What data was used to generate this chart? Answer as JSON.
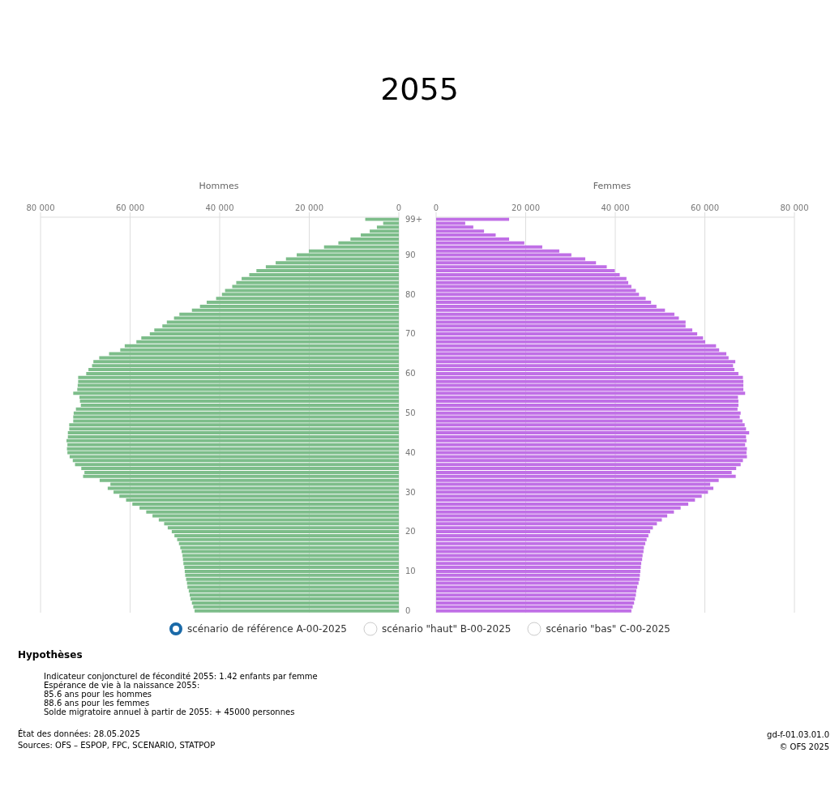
{
  "chart_data": [
    {
      "type": "bar",
      "title": "2055",
      "xlabel": "Hommes",
      "orientation": "horizontal",
      "categories": [
        "99+",
        null,
        null,
        null,
        null,
        null,
        null,
        null,
        null,
        "90",
        null,
        null,
        null,
        null,
        null,
        null,
        null,
        null,
        null,
        "80",
        null,
        null,
        null,
        null,
        null,
        null,
        null,
        null,
        null,
        "70",
        null,
        null,
        null,
        null,
        null,
        null,
        null,
        null,
        null,
        "60",
        null,
        null,
        null,
        null,
        null,
        null,
        null,
        null,
        null,
        "50",
        null,
        null,
        null,
        null,
        null,
        null,
        null,
        null,
        null,
        "40",
        null,
        null,
        null,
        null,
        null,
        null,
        null,
        null,
        null,
        "30",
        null,
        null,
        null,
        null,
        null,
        null,
        null,
        null,
        null,
        "20",
        null,
        null,
        null,
        null,
        null,
        null,
        null,
        null,
        null,
        "10",
        null,
        null,
        null,
        null,
        null,
        null,
        null,
        null,
        null,
        "0"
      ],
      "series": [
        {
          "color": "#7dbd8a",
          "values": [
            7500,
            3500,
            4900,
            6500,
            8500,
            10800,
            13500,
            16700,
            20100,
            22800,
            25200,
            27500,
            29700,
            31800,
            33400,
            35100,
            36300,
            37200,
            38800,
            39500,
            40800,
            42900,
            44400,
            46200,
            49000,
            50200,
            51800,
            52800,
            54600,
            55600,
            57500,
            58600,
            61200,
            62200,
            64700,
            66900,
            68200,
            68500,
            69300,
            69800,
            71600,
            71600,
            71700,
            71800,
            72700,
            71300,
            71200,
            71000,
            72100,
            72600,
            72700,
            72700,
            73600,
            73600,
            73900,
            73900,
            74200,
            74000,
            74100,
            74000,
            73500,
            72800,
            72300,
            70900,
            70200,
            70500,
            66800,
            64400,
            65000,
            63700,
            62400,
            60900,
            59500,
            57900,
            56400,
            55000,
            53600,
            52400,
            51600,
            50700,
            50100,
            49500,
            49100,
            48800,
            48500,
            48300,
            48200,
            48100,
            47900,
            47800,
            47700,
            47500,
            47300,
            47200,
            46900,
            46700,
            46500,
            46200,
            45900,
            45600
          ]
        }
      ],
      "xlim": [
        80000,
        0
      ],
      "xticks": [
        {
          "value": 80000,
          "label": "80 000"
        },
        {
          "value": 60000,
          "label": "60 000"
        },
        {
          "value": 40000,
          "label": "40 000"
        },
        {
          "value": 20000,
          "label": "20 000"
        },
        0
      ],
      "grid": "x",
      "annotations": [
        "Hypothèses",
        "Indicateur conjoncturel de fécondité 2055: 1.42 enfants par femme",
        "Espérance de vie à la naissance 2055:",
        "85.6 ans pour les hommes",
        "88.6 ans pour les femmes",
        "Solde migratoire annuel à partir de 2055: + 45000 personnes",
        "État des données: 28.05.2025",
        "Sources: OFS – ESPOP, FPC, SCENARIO, STATPOP",
        "gd-f-01.03.01.0",
        "© OFS 2025"
      ]
    },
    {
      "type": "bar",
      "xlabel": "Femmes",
      "orientation": "horizontal",
      "categories": [
        null,
        null,
        null,
        null,
        null,
        null,
        null,
        null,
        null,
        null,
        null,
        null,
        null,
        null,
        null,
        null,
        null,
        null,
        null,
        null,
        null,
        null,
        null,
        null,
        null,
        null,
        null,
        null,
        null,
        null,
        null,
        null,
        null,
        null,
        null,
        null,
        null,
        null,
        null,
        null,
        null,
        null,
        null,
        null,
        null,
        null,
        null,
        null,
        null,
        null,
        null,
        null,
        null,
        null,
        null,
        null,
        null,
        null,
        null,
        null,
        null,
        null,
        null,
        null,
        null,
        null,
        null,
        null,
        null,
        null,
        null,
        null,
        null,
        null,
        null,
        null,
        null,
        null,
        null,
        null,
        null,
        null,
        null,
        null,
        null,
        null,
        null,
        null,
        null,
        null,
        null,
        null,
        null,
        null,
        null,
        null,
        null,
        null,
        null,
        null
      ],
      "series": [
        {
          "color": "#c06fe6",
          "values": [
            16300,
            6500,
            8300,
            10700,
            13300,
            16300,
            19700,
            23700,
            27500,
            30200,
            33300,
            35700,
            38100,
            39900,
            41000,
            42500,
            42900,
            43600,
            44600,
            45300,
            46800,
            48000,
            49200,
            51100,
            53200,
            54200,
            55700,
            55700,
            57200,
            58300,
            59600,
            60100,
            62500,
            63200,
            64800,
            65300,
            66800,
            66300,
            66600,
            67500,
            68500,
            68600,
            68600,
            68600,
            69000,
            67400,
            67500,
            67500,
            67300,
            68000,
            67800,
            68400,
            68900,
            69200,
            69900,
            69200,
            69300,
            69000,
            69400,
            69300,
            69400,
            68500,
            68000,
            67000,
            66000,
            66900,
            63100,
            61200,
            61900,
            60700,
            59300,
            57800,
            56300,
            54600,
            53100,
            51600,
            50400,
            49300,
            48400,
            47800,
            47400,
            47000,
            46700,
            46400,
            46300,
            46100,
            46000,
            45800,
            45700,
            45600,
            45500,
            45400,
            45200,
            44900,
            44700,
            44600,
            44400,
            44200,
            43900,
            43600
          ]
        }
      ],
      "xlim": [
        0,
        80000
      ],
      "xticks": [
        0,
        {
          "value": 20000,
          "label": "20 000"
        },
        {
          "value": 40000,
          "label": "40 000"
        },
        {
          "value": 60000,
          "label": "60 000"
        },
        {
          "value": 80000,
          "label": "80 000"
        }
      ],
      "grid": "x",
      "tick_labels": "x",
      "annotations": [
        "scénario de référence A-00-2025",
        "scénario \"haut\" B-00-2025",
        "scénario \"bas\" C-00-2025"
      ]
    }
  ]
}
